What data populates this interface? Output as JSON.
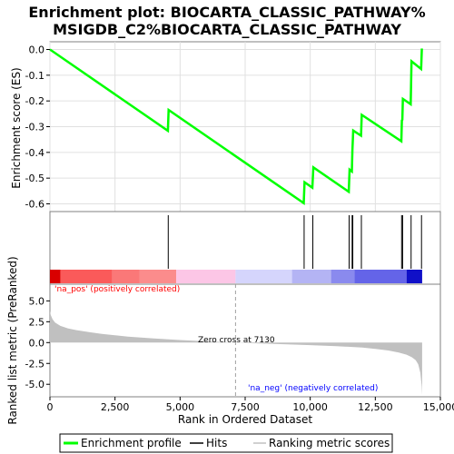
{
  "chart_data": {
    "type": "line",
    "title": "Enrichment plot: BIOCARTA_CLASSIC_PATHWAY%\nMSIGDB_C2%BIOCARTA_CLASSIC_PATHWAY",
    "xlabel": "Rank in Ordered Dataset",
    "xlim": [
      0,
      15000
    ],
    "xticks": [
      "0",
      "2,500",
      "5,000",
      "7,500",
      "10,000",
      "12,500",
      "15,000"
    ],
    "xtick_values": [
      0,
      2500,
      5000,
      7500,
      10000,
      12500,
      15000
    ],
    "es_panel": {
      "ylabel": "Enrichment score (ES)",
      "ylim": [
        -0.63,
        0.03
      ],
      "yticks": [
        "0.0",
        "-0.1",
        "-0.2",
        "-0.3",
        "-0.4",
        "-0.5",
        "-0.6"
      ],
      "ytick_values": [
        0,
        -0.1,
        -0.2,
        -0.3,
        -0.4,
        -0.5,
        -0.6
      ],
      "grid": true,
      "line_color": "#00ff00",
      "x": [
        0,
        4530,
        4560,
        9750,
        9780,
        10080,
        10120,
        11480,
        11510,
        11600,
        11620,
        11650,
        11950,
        11980,
        13500,
        13520,
        13540,
        13560,
        13860,
        13890,
        14260,
        14290
      ],
      "y": [
        0,
        -0.316,
        -0.235,
        -0.597,
        -0.516,
        -0.537,
        -0.458,
        -0.553,
        -0.467,
        -0.474,
        -0.393,
        -0.315,
        -0.335,
        -0.254,
        -0.357,
        -0.276,
        -0.273,
        -0.192,
        -0.213,
        -0.046,
        -0.076,
        0.004
      ]
    },
    "hits": [
      4545,
      9765,
      10100,
      11495,
      11610,
      11635,
      11965,
      13510,
      13550,
      13875,
      14275
    ],
    "hit_color": "#000000",
    "heatmap_segments": [
      {
        "from": 0,
        "to": 400,
        "color": "#d90000"
      },
      {
        "from": 400,
        "to": 2400,
        "color": "#fa5a5a"
      },
      {
        "from": 2400,
        "to": 3450,
        "color": "#fa7878"
      },
      {
        "from": 3450,
        "to": 4850,
        "color": "#fb8c8c"
      },
      {
        "from": 4850,
        "to": 7130,
        "color": "#fcc6e6"
      },
      {
        "from": 7130,
        "to": 9300,
        "color": "#d5d5fc"
      },
      {
        "from": 9300,
        "to": 10800,
        "color": "#b4b4f4"
      },
      {
        "from": 10800,
        "to": 11700,
        "color": "#8a8aee"
      },
      {
        "from": 11700,
        "to": 13700,
        "color": "#6464e8"
      },
      {
        "from": 13700,
        "to": 14300,
        "color": "#1010c8"
      }
    ],
    "metric_panel": {
      "ylabel": "Ranked list metric (PreRanked)",
      "ylim": [
        -6.5,
        7
      ],
      "yticks": [
        "5.0",
        "2.5",
        "0.0",
        "-2.5",
        "-5.0"
      ],
      "ytick_values": [
        5,
        2.5,
        0,
        -2.5,
        -5
      ],
      "fill_color": "#c0c0c0",
      "x": [
        0,
        30,
        100,
        200,
        400,
        700,
        1000,
        1500,
        2000,
        2500,
        3000,
        4000,
        5000,
        6000,
        7130,
        8000,
        9000,
        10000,
        11000,
        12000,
        12500,
        13000,
        13400,
        13700,
        13900,
        14050,
        14150,
        14230,
        14280,
        14300
      ],
      "y": [
        3.8,
        3.3,
        2.8,
        2.4,
        2.0,
        1.7,
        1.5,
        1.25,
        1.05,
        0.88,
        0.72,
        0.5,
        0.3,
        0.15,
        0.0,
        -0.1,
        -0.2,
        -0.3,
        -0.42,
        -0.6,
        -0.75,
        -0.95,
        -1.2,
        -1.45,
        -1.75,
        -2.1,
        -2.6,
        -3.6,
        -5.2,
        -6.3
      ],
      "zero_cross_rank": 7130,
      "annotations": {
        "pos": "'na_pos' (positively correlated)",
        "neg": "'na_neg' (negatively correlated)",
        "zero": "Zero cross at 7130"
      }
    },
    "legend": {
      "position": "bottom",
      "entries": [
        "Enrichment profile",
        "Hits",
        "Ranking metric scores"
      ],
      "colors": [
        "#00ff00",
        "#000000",
        "#c0c0c0"
      ]
    }
  }
}
